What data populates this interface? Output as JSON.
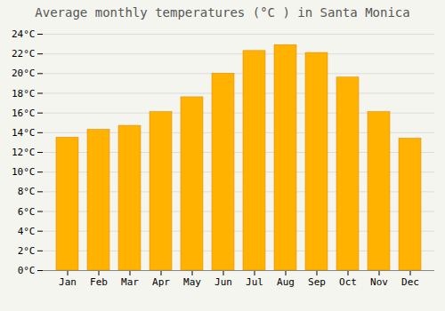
{
  "chart_data": {
    "type": "bar",
    "title": "Average monthly temperatures (°C ) in Santa Monica",
    "categories": [
      "Jan",
      "Feb",
      "Mar",
      "Apr",
      "May",
      "Jun",
      "Jul",
      "Aug",
      "Sep",
      "Oct",
      "Nov",
      "Dec"
    ],
    "values": [
      13.5,
      14.3,
      14.7,
      16.1,
      17.6,
      20.0,
      22.3,
      22.9,
      22.1,
      19.6,
      16.1,
      13.4
    ],
    "color": "#FFB300",
    "ylim": [
      0,
      24
    ],
    "yticks": [
      {
        "value": 0,
        "label": "0°C"
      },
      {
        "value": 2,
        "label": "2°C"
      },
      {
        "value": 4,
        "label": "4°C"
      },
      {
        "value": 6,
        "label": "6°C"
      },
      {
        "value": 8,
        "label": "8°C"
      },
      {
        "value": 10,
        "label": "10°C"
      },
      {
        "value": 12,
        "label": "12°C"
      },
      {
        "value": 14,
        "label": "14°C"
      },
      {
        "value": 16,
        "label": "16°C"
      },
      {
        "value": 18,
        "label": "18°C"
      },
      {
        "value": 20,
        "label": "20°C"
      },
      {
        "value": 22,
        "label": "22°C"
      },
      {
        "value": 24,
        "label": "24°C"
      }
    ],
    "grid": true
  }
}
